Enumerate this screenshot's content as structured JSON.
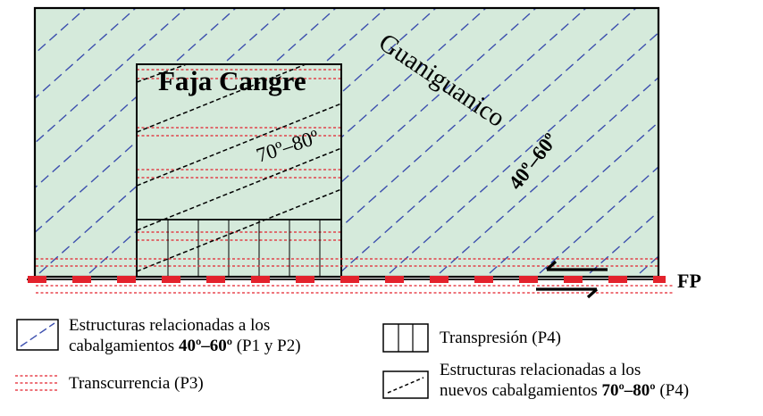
{
  "diagram": {
    "region_label": "Guaniguanico",
    "region_angle": "40º–60º",
    "box_title": "Faja Cangre",
    "box_angle": "70º–80º",
    "fault_label": "FP",
    "colors": {
      "background_fill": "#d5eadb",
      "blue_dash": "#3c4fae",
      "red_dot": "#e3222c",
      "outline": "#000000"
    }
  },
  "legend": {
    "item1": {
      "line1": "Estructuras relacionadas a los",
      "line2_pre": "cabalgamientos ",
      "line2_bold": "40º–60º",
      "line2_post": " (P1 y P2)"
    },
    "item2": {
      "label": "Transcurrencia (P3)"
    },
    "item3": {
      "label": "Transpresión (P4)"
    },
    "item4": {
      "line1": "Estructuras relacionadas a los",
      "line2_pre": "nuevos cabalgamientos ",
      "line2_bold": "70º–80º",
      "line2_post": " (P4)"
    }
  }
}
